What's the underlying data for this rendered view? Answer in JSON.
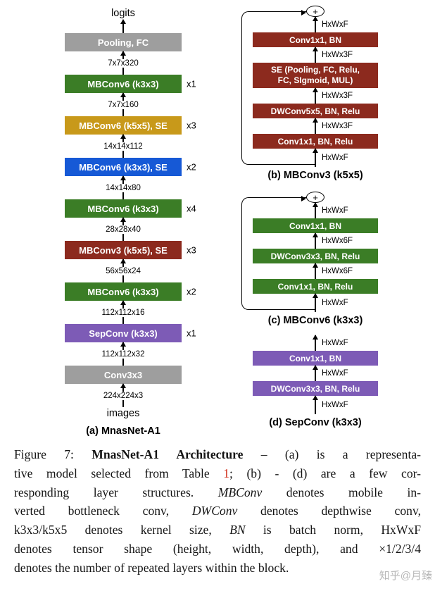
{
  "common": {
    "plus": "+"
  },
  "colors": {
    "gray": "#9e9e9e",
    "green": "#3b7d26",
    "gold": "#c8991a",
    "blue": "#1659d6",
    "maroon": "#8c2a1e",
    "purple": "#7d5bb6",
    "link_red": "#d2321e",
    "watermark_gray": "#b8b8b8"
  },
  "diagram_a": {
    "output_label": "logits",
    "input_label": "images",
    "caption": "(a) MnasNet-A1",
    "layers": [
      {
        "label": "Pooling, FC",
        "repeat": "",
        "below_dim": "7x7x320"
      },
      {
        "label": "MBConv6 (k3x3)",
        "repeat": "x1",
        "below_dim": "7x7x160"
      },
      {
        "label": "MBConv6 (k5x5), SE",
        "repeat": "x3",
        "below_dim": "14x14x112"
      },
      {
        "label": "MBConv6 (k3x3), SE",
        "repeat": "x2",
        "below_dim": "14x14x80"
      },
      {
        "label": "MBConv6 (k3x3)",
        "repeat": "x4",
        "below_dim": "28x28x40"
      },
      {
        "label": "MBConv3 (k5x5), SE",
        "repeat": "x3",
        "below_dim": "56x56x24"
      },
      {
        "label": "MBConv6 (k3x3)",
        "repeat": "x2",
        "below_dim": "112x112x16"
      },
      {
        "label": "SepConv (k3x3)",
        "repeat": "x1",
        "below_dim": "112x112x32"
      },
      {
        "label": "Conv3x3",
        "repeat": "",
        "below_dim": "224x224x3"
      }
    ]
  },
  "diagram_b": {
    "caption": "(b) MBConv3 (k5x5)",
    "dims": [
      "HxWxF",
      "HxWx3F",
      "HxWx3F",
      "HxWx3F",
      "HxWxF"
    ],
    "boxes": [
      "Conv1x1, BN",
      "SE (Pooling, FC, Relu,",
      "FC, SIgmoid, MUL)",
      "DWConv5x5, BN, Relu",
      "Conv1x1, BN, Relu"
    ]
  },
  "diagram_c": {
    "caption": "(c) MBConv6 (k3x3)",
    "dims": [
      "HxWxF",
      "HxWx6F",
      "HxWx6F",
      "HxWxF"
    ],
    "boxes": [
      "Conv1x1, BN",
      "DWConv3x3, BN, Relu",
      "Conv1x1, BN, Relu"
    ]
  },
  "diagram_d": {
    "caption": "(d) SepConv (k3x3)",
    "dims": [
      "HxWxF",
      "HxWxF",
      "HxWxF"
    ],
    "boxes": [
      "Conv1x1, BN",
      "DWConv3x3, BN, Relu"
    ]
  },
  "caption": {
    "l1a": "Figure 7: ",
    "l1b": "MnasNet-A1 Architecture",
    "l1c": " – (a) is a representa-",
    "l2a": "tive model selected from Table ",
    "l2b": "1",
    "l2c": "; (b) - (d) are a few cor-",
    "l3a": "responding layer structures. ",
    "l3b": "MBConv",
    "l3c": " denotes mobile in-",
    "l4a": "verted bottleneck conv, ",
    "l4b": "DWConv",
    "l4c": " denotes depthwise conv,",
    "l5a": "k3x3/k5x5 denotes kernel size, ",
    "l5b": "BN",
    "l5c": " is batch norm, HxWxF",
    "l6": "denotes tensor shape (height, width, depth), and ×1/2/3/4",
    "l7": "denotes the number of repeated layers within the block."
  },
  "watermark": {
    "text": "知乎@月臻"
  }
}
